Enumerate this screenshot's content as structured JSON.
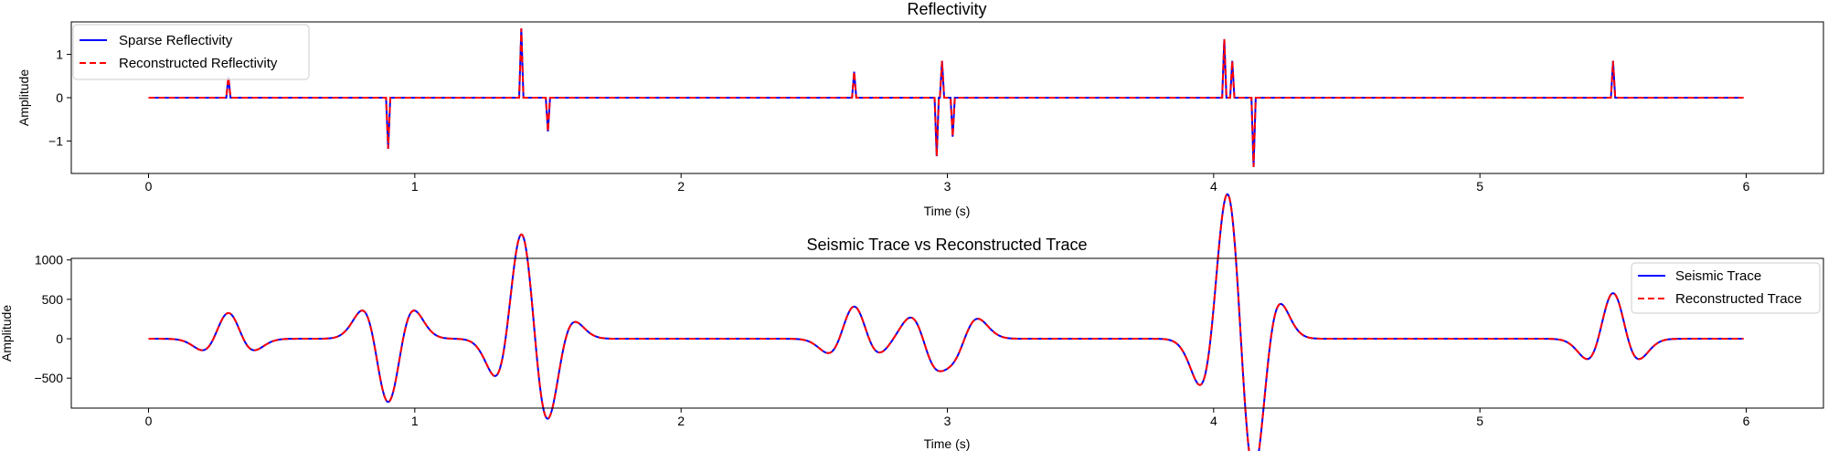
{
  "chart_data": [
    {
      "type": "line",
      "title": "Reflectivity",
      "xlabel": "Time (s)",
      "ylabel": "Amplitude",
      "xlim": [
        -0.29,
        6.29
      ],
      "ylim": [
        -1.75,
        1.75
      ],
      "xticks": [
        0,
        1,
        2,
        3,
        4,
        5,
        6
      ],
      "yticks": [
        -1,
        0,
        1
      ],
      "grid": false,
      "legend_position": "upper-left",
      "x_range": [
        0,
        5.99
      ],
      "spikes": [
        {
          "t": 0.3,
          "a": 0.48
        },
        {
          "t": 0.9,
          "a": -1.18
        },
        {
          "t": 1.4,
          "a": 1.6
        },
        {
          "t": 1.5,
          "a": -0.78
        },
        {
          "t": 2.65,
          "a": 0.6
        },
        {
          "t": 2.96,
          "a": -1.35
        },
        {
          "t": 2.98,
          "a": 0.85
        },
        {
          "t": 3.02,
          "a": -0.9
        },
        {
          "t": 4.04,
          "a": 1.35
        },
        {
          "t": 4.07,
          "a": 0.85
        },
        {
          "t": 4.15,
          "a": -1.6
        },
        {
          "t": 5.5,
          "a": 0.85
        }
      ],
      "series": [
        {
          "name": "Sparse Reflectivity",
          "color": "#0000ff",
          "style": "solid"
        },
        {
          "name": "Reconstructed Reflectivity",
          "color": "#ff0000",
          "style": "dashed"
        }
      ]
    },
    {
      "type": "line",
      "title": "Seismic Trace vs Reconstructed Trace",
      "xlabel": "Time (s)",
      "ylabel": "Amplitude",
      "xlim": [
        -0.29,
        6.29
      ],
      "ylim": [
        -880,
        1020
      ],
      "xticks": [
        0,
        1,
        2,
        3,
        4,
        5,
        6
      ],
      "yticks": [
        -500,
        0,
        500,
        1000
      ],
      "grid": false,
      "legend_position": "upper-right",
      "x_range": [
        0,
        5.99
      ],
      "wavelet_scale": 680,
      "series": [
        {
          "name": "Seismic Trace",
          "color": "#0000ff",
          "style": "solid"
        },
        {
          "name": "Reconstructed Trace",
          "color": "#ff0000",
          "style": "dashed"
        }
      ]
    }
  ]
}
